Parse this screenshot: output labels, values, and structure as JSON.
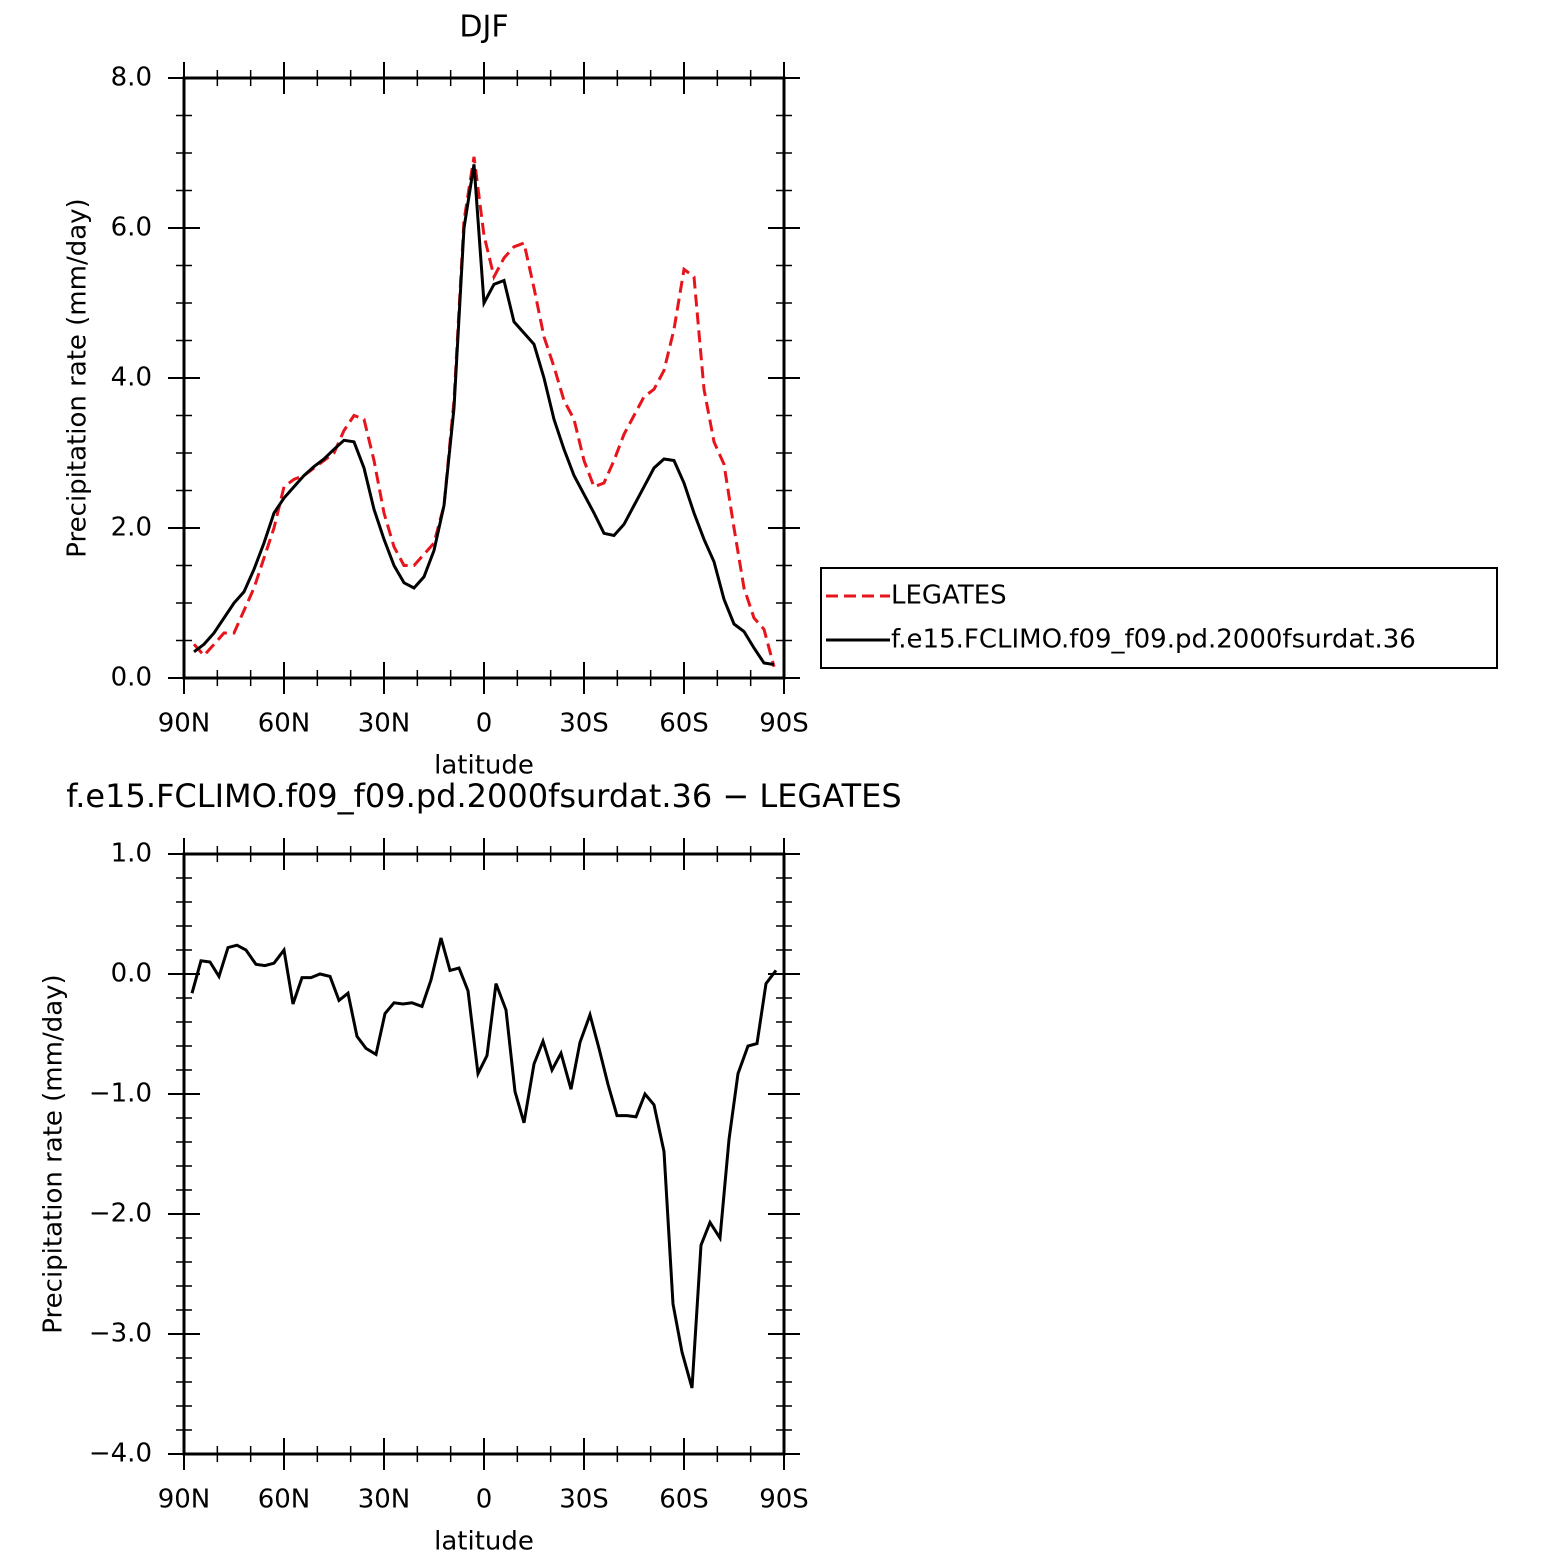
{
  "chart_data": [
    {
      "type": "line",
      "title": "DJF",
      "xlabel": "latitude",
      "ylabel": "Precipitation rate (mm/day)",
      "xlim": [
        90,
        -90
      ],
      "ylim": [
        0,
        8
      ],
      "xticks": [
        {
          "value": 90,
          "label": "90N"
        },
        {
          "value": 60,
          "label": "60N"
        },
        {
          "value": 30,
          "label": "30N"
        },
        0,
        {
          "value": -30,
          "label": "30S"
        },
        {
          "value": -60,
          "label": "60S"
        },
        {
          "value": -90,
          "label": "90S"
        }
      ],
      "yticks": [
        {
          "value": 0,
          "label": "0.0"
        },
        {
          "value": 2,
          "label": "2.0"
        },
        {
          "value": 4,
          "label": "4.0"
        },
        {
          "value": 6,
          "label": "6.0"
        },
        {
          "value": 8,
          "label": "8.0"
        }
      ],
      "legend": "right",
      "x": [
        87,
        84,
        81,
        78,
        75,
        72,
        69,
        66,
        63,
        60,
        57,
        54,
        51,
        48,
        45,
        42,
        39,
        36,
        33,
        30,
        27,
        24,
        21,
        18,
        15,
        12,
        9,
        6,
        3,
        0,
        -3,
        -6,
        -9,
        -12,
        -15,
        -18,
        -21,
        -24,
        -27,
        -30,
        -33,
        -36,
        -39,
        -42,
        -45,
        -48,
        -51,
        -54,
        -57,
        -60,
        -63,
        -66,
        -69,
        -72,
        -75,
        -78,
        -81,
        -84,
        -87
      ],
      "series": [
        {
          "name": "LEGATES",
          "color": "#e8141c",
          "dash": true,
          "values": [
            0.45,
            0.3,
            0.45,
            0.6,
            0.6,
            0.9,
            1.2,
            1.6,
            2.0,
            2.55,
            2.65,
            2.7,
            2.8,
            2.9,
            3.0,
            3.3,
            3.5,
            3.45,
            2.9,
            2.2,
            1.75,
            1.5,
            1.5,
            1.65,
            1.8,
            2.3,
            3.7,
            6.1,
            6.95,
            5.9,
            5.35,
            5.6,
            5.75,
            5.8,
            5.2,
            4.55,
            4.15,
            3.7,
            3.45,
            2.9,
            2.55,
            2.6,
            2.9,
            3.25,
            3.5,
            3.75,
            3.85,
            4.1,
            4.65,
            5.45,
            5.35,
            3.85,
            3.15,
            2.85,
            2.0,
            1.2,
            0.8,
            0.65,
            0.15
          ]
        },
        {
          "name": "f.e15.FCLIMO.f09_f09.pd.2000fsurdat.36",
          "color": "#000000",
          "dash": false,
          "values": [
            0.35,
            0.45,
            0.6,
            0.8,
            1.0,
            1.15,
            1.45,
            1.8,
            2.2,
            2.4,
            2.55,
            2.7,
            2.82,
            2.92,
            3.05,
            3.17,
            3.15,
            2.8,
            2.25,
            1.85,
            1.5,
            1.27,
            1.2,
            1.35,
            1.7,
            2.3,
            3.6,
            6.0,
            6.85,
            5.0,
            5.25,
            5.3,
            4.75,
            4.6,
            4.45,
            4.0,
            3.45,
            3.05,
            2.7,
            2.45,
            2.2,
            1.93,
            1.9,
            2.05,
            2.3,
            2.55,
            2.8,
            2.92,
            2.9,
            2.6,
            2.2,
            1.85,
            1.55,
            1.05,
            0.72,
            0.62,
            0.4,
            0.2,
            0.18
          ]
        }
      ]
    },
    {
      "type": "line",
      "title": "f.e15.FCLIMO.f09_f09.pd.2000fsurdat.36 − LEGATES",
      "xlabel": "latitude",
      "ylabel": "Precipitation rate (mm/day)",
      "xlim": [
        90,
        -90
      ],
      "ylim": [
        -4,
        1
      ],
      "xticks": [
        {
          "value": 90,
          "label": "90N"
        },
        {
          "value": 60,
          "label": "60N"
        },
        {
          "value": 30,
          "label": "30N"
        },
        0,
        {
          "value": -30,
          "label": "30S"
        },
        {
          "value": -60,
          "label": "60S"
        },
        {
          "value": -90,
          "label": "90S"
        }
      ],
      "yticks": [
        {
          "value": -4,
          "label": "−4.0"
        },
        {
          "value": -3,
          "label": "−3.0"
        },
        {
          "value": -2,
          "label": "−2.0"
        },
        {
          "value": -1,
          "label": "−1.0"
        },
        {
          "value": 0,
          "label": "0.0"
        },
        {
          "value": 1,
          "label": "1.0"
        }
      ],
      "x": [
        87.6,
        84.9,
        82.2,
        79.5,
        76.8,
        74.1,
        71.4,
        68.4,
        65.7,
        63.0,
        60.0,
        57.3,
        54.6,
        51.9,
        49.2,
        46.2,
        43.5,
        40.8,
        38.1,
        35.4,
        32.4,
        29.7,
        27.0,
        24.3,
        21.6,
        18.6,
        15.9,
        12.9,
        10.2,
        7.5,
        4.8,
        1.8,
        -0.9,
        -3.6,
        -6.6,
        -9.3,
        -12.0,
        -15.0,
        -17.7,
        -20.4,
        -23.1,
        -26.1,
        -28.8,
        -31.8,
        -34.5,
        -37.2,
        -39.9,
        -42.9,
        -45.6,
        -48.3,
        -51.0,
        -54.0,
        -56.7,
        -59.4,
        -62.4,
        -65.1,
        -67.8,
        -70.8,
        -73.5,
        -76.2,
        -79.2,
        -81.9,
        -84.6,
        -87.6
      ],
      "series": [
        {
          "color": "#000000",
          "dash": false,
          "values": [
            -0.16,
            0.11,
            0.1,
            -0.02,
            0.22,
            0.24,
            0.2,
            0.08,
            0.07,
            0.09,
            0.2,
            -0.25,
            -0.03,
            -0.03,
            0,
            -0.02,
            -0.22,
            -0.16,
            -0.52,
            -0.62,
            -0.67,
            -0.33,
            -0.24,
            -0.25,
            -0.24,
            -0.27,
            -0.05,
            0.3,
            0.03,
            0.05,
            -0.14,
            -0.83,
            -0.68,
            -0.08,
            -0.3,
            -0.98,
            -1.24,
            -0.75,
            -0.56,
            -0.8,
            -0.66,
            -0.96,
            -0.57,
            -0.34,
            -0.62,
            -0.92,
            -1.18,
            -1.18,
            -1.19,
            -1.0,
            -1.09,
            -1.48,
            -2.75,
            -3.15,
            -3.45,
            -2.26,
            -2.07,
            -2.2,
            -1.38,
            -0.83,
            -0.6,
            -0.58,
            -0.08,
            0.03
          ]
        }
      ]
    }
  ]
}
